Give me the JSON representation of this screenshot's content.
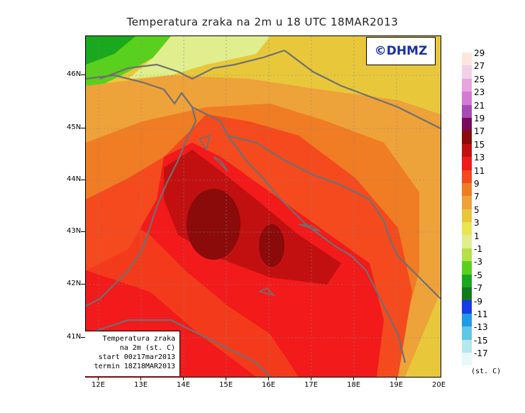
{
  "title": "Temperatura zraka na 2m u 18 UTC 18MAR2013",
  "copyright": "©DHMZ",
  "legend_box": {
    "line1": "Temperatura zraka",
    "line2": "na 2m (st. C)",
    "line3": "start 00z17mar2013",
    "line4": "termin 18Z18MAR2013"
  },
  "lat_labels": [
    "46N",
    "45N",
    "44N",
    "43N",
    "42N",
    "41N"
  ],
  "lon_labels": [
    "12E",
    "13E",
    "14E",
    "15E",
    "16E",
    "17E",
    "18E",
    "19E",
    "20E"
  ],
  "colorbar": {
    "labels": [
      "29",
      "27",
      "25",
      "23",
      "21",
      "19",
      "17",
      "15",
      "13",
      "11",
      "9",
      "7",
      "5",
      "3",
      "1",
      "-1",
      "-3",
      "-5",
      "-7",
      "-9",
      "-11",
      "-13",
      "-15",
      "-17"
    ],
    "colors": [
      "#fde7dc",
      "#f2d1e8",
      "#e6a5de",
      "#d67ad6",
      "#a84ab6",
      "#7a0a5c",
      "#8b0a0a",
      "#c21010",
      "#f21a1a",
      "#f44a1e",
      "#f07c24",
      "#eea23a",
      "#e8c83a",
      "#e8e650",
      "#e0ee8e",
      "#b6e04a",
      "#5ad01e",
      "#1aa81e",
      "#117a1e",
      "#1a3ce6",
      "#1e9ae6",
      "#5ec8e6",
      "#b6e6ee",
      "#e6f8fa"
    ],
    "unit": "(st. C)"
  }
}
